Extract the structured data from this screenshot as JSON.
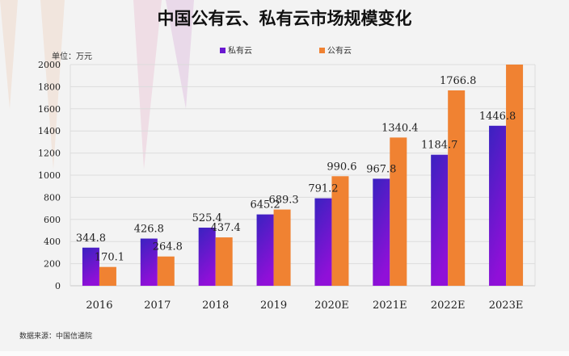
{
  "chart_data": {
    "type": "bar",
    "title": "中国公有云、私有云市场规模变化",
    "unit_label": "单位：万元",
    "source": "数据来源：中国信通院",
    "categories": [
      "2016",
      "2017",
      "2018",
      "2019",
      "2020E",
      "2021E",
      "2022E",
      "2023E"
    ],
    "series": [
      {
        "name": "私有云",
        "values": [
          344.8,
          426.8,
          525.4,
          645.2,
          791.2,
          967.8,
          1184.7,
          1446.8
        ],
        "labels": [
          "344.8",
          "426.8",
          "525.4",
          "645.2",
          "791.2",
          "967.8",
          "1184.7",
          "1446.8"
        ],
        "color_top": "#3a22c0",
        "color_bottom": "#9010d8"
      },
      {
        "name": "公有云",
        "values": [
          170.1,
          264.8,
          437.4,
          689.3,
          990.6,
          1340.4,
          1766.8,
          2000
        ],
        "labels": [
          "170.1",
          "264.8",
          "437.4",
          "689.3",
          "990.6",
          "1340.4",
          "1766.8",
          ""
        ],
        "color": "#f08232"
      }
    ],
    "ylim": [
      0,
      2000
    ],
    "yticks": [
      0,
      200,
      400,
      600,
      800,
      1000,
      1200,
      1400,
      1600,
      1800,
      2000
    ],
    "grid": true,
    "legend_position": "top-center"
  }
}
